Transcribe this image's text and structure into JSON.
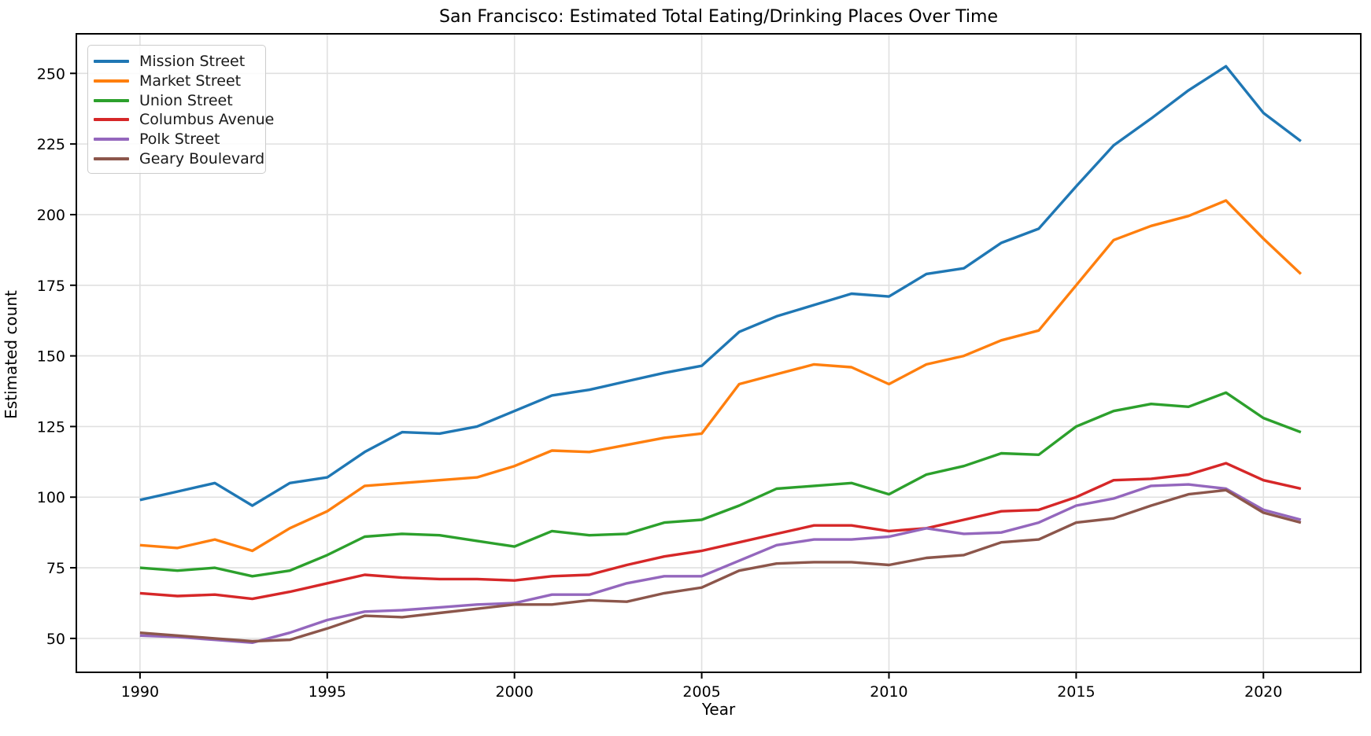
{
  "chart_data": {
    "type": "line",
    "title": "San Francisco: Estimated Total Eating/Drinking Places Over Time",
    "xlabel": "Year",
    "ylabel": "Estimated count",
    "grid": true,
    "legend_position": "upper left",
    "xlim": [
      1988.3,
      2022.6
    ],
    "ylim": [
      38,
      264
    ],
    "x_ticks": [
      1990,
      1995,
      2000,
      2005,
      2010,
      2015,
      2020
    ],
    "y_ticks": [
      50,
      75,
      100,
      125,
      150,
      175,
      200,
      225,
      250
    ],
    "x": [
      1990,
      1991,
      1992,
      1993,
      1994,
      1995,
      1996,
      1997,
      1998,
      1999,
      2000,
      2001,
      2002,
      2003,
      2004,
      2005,
      2006,
      2007,
      2008,
      2009,
      2010,
      2011,
      2012,
      2013,
      2014,
      2015,
      2016,
      2017,
      2018,
      2019,
      2020,
      2021
    ],
    "series": [
      {
        "name": "Mission Street",
        "color": "#1f77b4",
        "values": [
          99,
          102,
          105,
          97,
          105,
          107,
          116,
          123,
          122.5,
          125,
          130.5,
          136,
          138,
          141,
          144,
          146.5,
          158.5,
          164,
          168,
          172,
          171,
          179,
          181,
          190,
          195,
          210,
          224.5,
          234,
          244,
          252.5,
          236,
          226
        ]
      },
      {
        "name": "Market Street",
        "color": "#ff7f0e",
        "values": [
          83,
          82,
          85,
          81,
          89,
          95,
          104,
          105,
          106,
          107,
          111,
          116.5,
          116,
          118.5,
          121,
          122.5,
          140,
          143.5,
          147,
          146,
          140,
          147,
          150,
          155.5,
          159,
          175,
          191,
          196,
          199.5,
          205,
          191.5,
          179
        ]
      },
      {
        "name": "Union Street",
        "color": "#2ca02c",
        "values": [
          75,
          74,
          75,
          72,
          74,
          79.5,
          86,
          87,
          86.5,
          84.5,
          82.5,
          88,
          86.5,
          87,
          91,
          92,
          97,
          103,
          104,
          105,
          101,
          108,
          111,
          115.5,
          115,
          125,
          130.5,
          133,
          132,
          137,
          128,
          123
        ]
      },
      {
        "name": "Columbus Avenue",
        "color": "#d62728",
        "values": [
          66,
          65,
          65.5,
          64,
          66.5,
          69.5,
          72.5,
          71.5,
          71,
          71,
          70.5,
          72,
          72.5,
          76,
          79,
          81,
          84,
          87,
          90,
          90,
          88,
          89,
          92,
          95,
          95.5,
          100,
          106,
          106.5,
          108,
          112,
          106,
          103
        ]
      },
      {
        "name": "Polk Street",
        "color": "#9467bd",
        "values": [
          51,
          50.5,
          49.5,
          48.5,
          52,
          56.5,
          59.5,
          60,
          61,
          62,
          62.5,
          65.5,
          65.5,
          69.5,
          72,
          72,
          77.5,
          83,
          85,
          85,
          86,
          89,
          87,
          87.5,
          91,
          97,
          99.5,
          104,
          104.5,
          103,
          95.5,
          92
        ]
      },
      {
        "name": "Geary Boulevard",
        "color": "#8c564b",
        "values": [
          52,
          51,
          50,
          49,
          49.5,
          53.5,
          58,
          57.5,
          59,
          60.5,
          62,
          62,
          63.5,
          63,
          66,
          68,
          74,
          76.5,
          77,
          77,
          76,
          78.5,
          79.5,
          84,
          85,
          91,
          92.5,
          97,
          101,
          102.5,
          94.5,
          91
        ]
      }
    ],
    "style": {
      "grid_color": "#e0e0e0",
      "spine_color": "#000000",
      "line_width": 3.4
    }
  }
}
